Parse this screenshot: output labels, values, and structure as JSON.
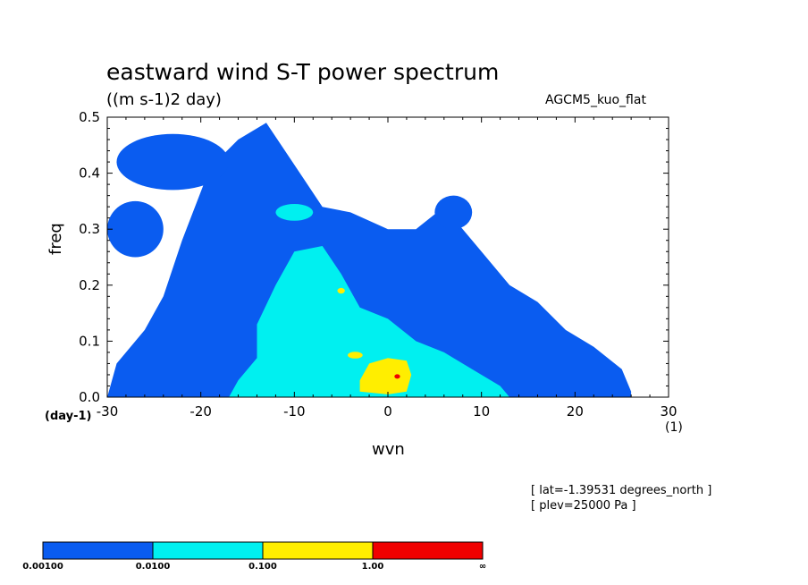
{
  "chart_data": {
    "type": "heatmap",
    "title": "eastward wind S-T power spectrum",
    "units": "((m s-1)2 day)",
    "dataset": "AGCM5_kuo_flat",
    "xlabel": "wvn",
    "ylabel": "freq",
    "x_unit": "(1)",
    "y_unit": "(day-1)",
    "xlim": [
      -30,
      30
    ],
    "ylim": [
      0,
      0.5
    ],
    "x_ticks": [
      "-30",
      "-20",
      "-10",
      "0",
      "10",
      "20",
      "30"
    ],
    "y_ticks": [
      "0.0",
      "0.1",
      "0.2",
      "0.3",
      "0.4",
      "0.5"
    ],
    "annotations": [
      "[ lat=-1.39531 degrees_north ]",
      "[ plev=25000 Pa ]"
    ],
    "levels": [
      "0.00100",
      "0.0100",
      "0.100",
      "1.00",
      "∞"
    ],
    "level_colors": [
      "#0a5cf0",
      "#00f0f0",
      "#ffee00",
      "#f00000"
    ],
    "regions": [
      {
        "level": 0,
        "shape": "polygon",
        "points": [
          [
            -30,
            0
          ],
          [
            -29,
            0.06
          ],
          [
            -26,
            0.12
          ],
          [
            -24,
            0.18
          ],
          [
            -22,
            0.28
          ],
          [
            -19,
            0.41
          ],
          [
            -16,
            0.46
          ],
          [
            -13,
            0.49
          ],
          [
            -11,
            0.44
          ],
          [
            -9,
            0.39
          ],
          [
            -7,
            0.34
          ],
          [
            -4,
            0.33
          ],
          [
            0,
            0.3
          ],
          [
            3,
            0.3
          ],
          [
            6,
            0.34
          ],
          [
            8,
            0.3
          ],
          [
            10,
            0.26
          ],
          [
            13,
            0.2
          ],
          [
            16,
            0.17
          ],
          [
            19,
            0.12
          ],
          [
            22,
            0.09
          ],
          [
            25,
            0.05
          ],
          [
            26,
            0.01
          ],
          [
            26,
            0
          ],
          [
            -30,
            0
          ]
        ]
      },
      {
        "level": 0,
        "shape": "ellipse",
        "cx": -23,
        "cy": 0.42,
        "rx": 6,
        "ry": 0.05
      },
      {
        "level": 0,
        "shape": "ellipse",
        "cx": -27,
        "cy": 0.3,
        "rx": 3,
        "ry": 0.05
      },
      {
        "level": 0,
        "shape": "ellipse",
        "cx": 7,
        "cy": 0.33,
        "rx": 2,
        "ry": 0.03
      },
      {
        "level": 1,
        "shape": "polygon",
        "points": [
          [
            -17,
            0
          ],
          [
            -16,
            0.03
          ],
          [
            -14,
            0.07
          ],
          [
            -14,
            0.13
          ],
          [
            -12,
            0.2
          ],
          [
            -10,
            0.26
          ],
          [
            -7,
            0.27
          ],
          [
            -5,
            0.22
          ],
          [
            -3,
            0.16
          ],
          [
            0,
            0.14
          ],
          [
            3,
            0.1
          ],
          [
            6,
            0.08
          ],
          [
            9,
            0.05
          ],
          [
            12,
            0.02
          ],
          [
            13,
            0
          ],
          [
            -17,
            0
          ]
        ]
      },
      {
        "level": 1,
        "shape": "ellipse",
        "cx": -10,
        "cy": 0.33,
        "rx": 2,
        "ry": 0.015
      },
      {
        "level": 1,
        "shape": "ellipse",
        "cx": -7,
        "cy": 0.19,
        "rx": 2.5,
        "ry": 0.02
      },
      {
        "level": 2,
        "shape": "polygon",
        "points": [
          [
            -3,
            0.01
          ],
          [
            -3,
            0.03
          ],
          [
            -2,
            0.06
          ],
          [
            0,
            0.07
          ],
          [
            2,
            0.065
          ],
          [
            2.5,
            0.04
          ],
          [
            2,
            0.01
          ],
          [
            0,
            0.005
          ],
          [
            -3,
            0.01
          ]
        ]
      },
      {
        "level": 2,
        "shape": "ellipse",
        "cx": -3.5,
        "cy": 0.075,
        "rx": 0.8,
        "ry": 0.006
      },
      {
        "level": 2,
        "shape": "ellipse",
        "cx": -5,
        "cy": 0.19,
        "rx": 0.4,
        "ry": 0.005
      },
      {
        "level": 3,
        "shape": "ellipse",
        "cx": 1,
        "cy": 0.037,
        "rx": 0.3,
        "ry": 0.004
      }
    ]
  }
}
